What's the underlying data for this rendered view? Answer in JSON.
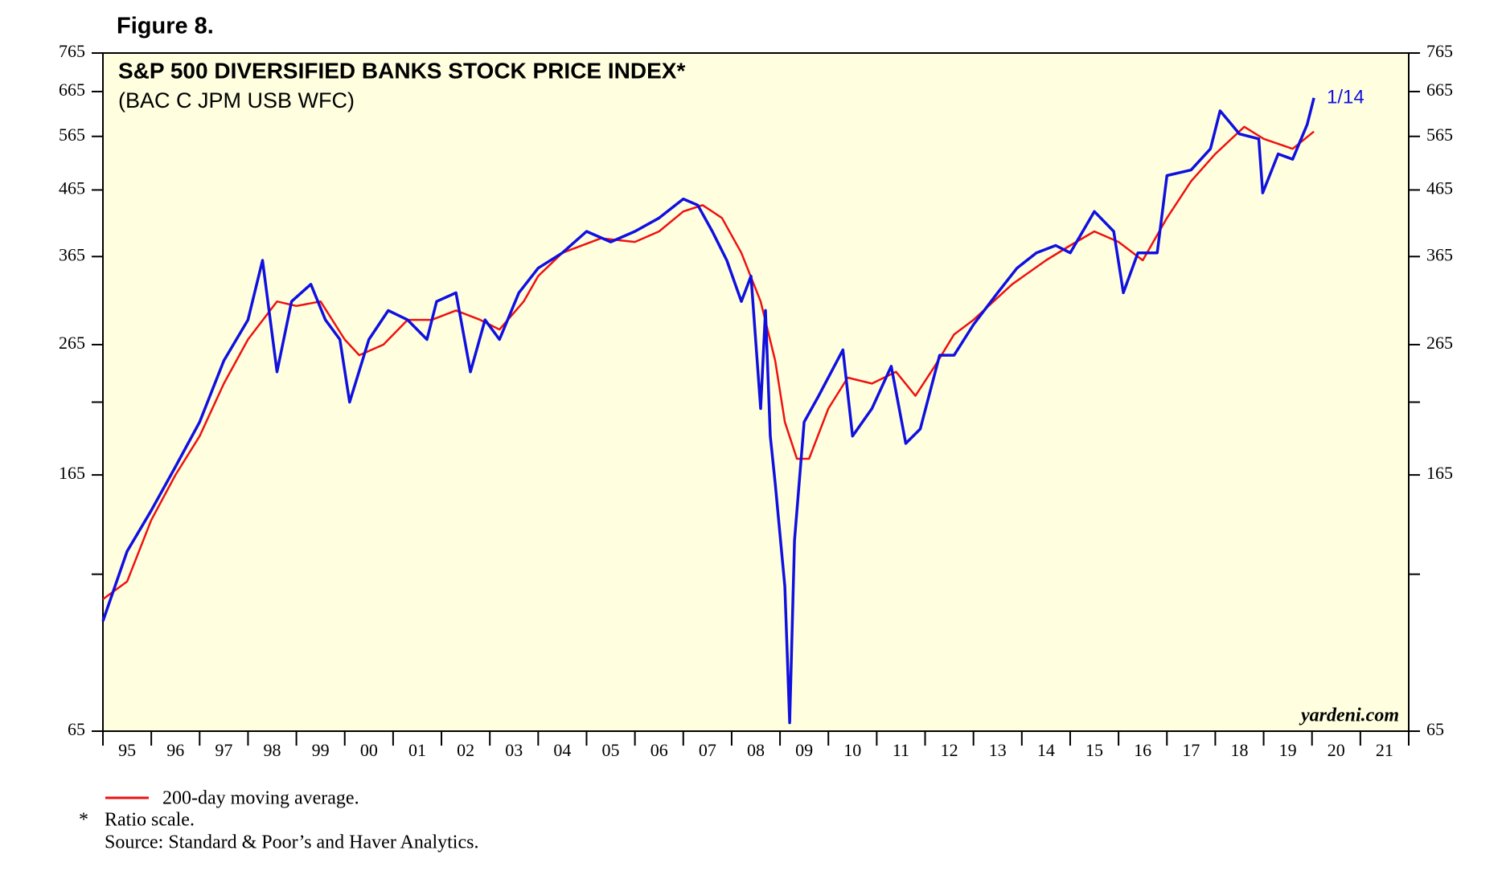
{
  "chart_data": {
    "type": "line",
    "figure_label": "Figure 8.",
    "title": "S&P 500 DIVERSIFIED BANKS STOCK PRICE INDEX*",
    "subtitle": "(BAC C JPM USB WFC)",
    "annotation": "1/14",
    "watermark": "yardeni.com",
    "note_marker": "*",
    "note": "Ratio scale.",
    "source": "Source: Standard & Poor’s and Haver Analytics.",
    "log_scale": true,
    "background": "#ffffe0",
    "xlim": [
      1995,
      2022
    ],
    "xticks": [
      1995,
      1996,
      1997,
      1998,
      1999,
      2000,
      2001,
      2002,
      2003,
      2004,
      2005,
      2006,
      2007,
      2008,
      2009,
      2010,
      2011,
      2012,
      2013,
      2014,
      2015,
      2016,
      2017,
      2018,
      2019,
      2020,
      2021,
      2022
    ],
    "xtick_labels": [
      {
        "value": 1995.5,
        "label": "95"
      },
      {
        "value": 1996.5,
        "label": "96"
      },
      {
        "value": 1997.5,
        "label": "97"
      },
      {
        "value": 1998.5,
        "label": "98"
      },
      {
        "value": 1999.5,
        "label": "99"
      },
      {
        "value": 2000.5,
        "label": "00"
      },
      {
        "value": 2001.5,
        "label": "01"
      },
      {
        "value": 2002.5,
        "label": "02"
      },
      {
        "value": 2003.5,
        "label": "03"
      },
      {
        "value": 2004.5,
        "label": "04"
      },
      {
        "value": 2005.5,
        "label": "05"
      },
      {
        "value": 2006.5,
        "label": "06"
      },
      {
        "value": 2007.5,
        "label": "07"
      },
      {
        "value": 2008.5,
        "label": "08"
      },
      {
        "value": 2009.5,
        "label": "09"
      },
      {
        "value": 2010.5,
        "label": "10"
      },
      {
        "value": 2011.5,
        "label": "11"
      },
      {
        "value": 2012.5,
        "label": "12"
      },
      {
        "value": 2013.5,
        "label": "13"
      },
      {
        "value": 2014.5,
        "label": "14"
      },
      {
        "value": 2015.5,
        "label": "15"
      },
      {
        "value": 2016.5,
        "label": "16"
      },
      {
        "value": 2017.5,
        "label": "17"
      },
      {
        "value": 2018.5,
        "label": "18"
      },
      {
        "value": 2019.5,
        "label": "19"
      },
      {
        "value": 2020.5,
        "label": "20"
      },
      {
        "value": 2021.5,
        "label": "21"
      }
    ],
    "ylim": [
      65,
      765
    ],
    "yticks": [
      65,
      165,
      265,
      365,
      465,
      565,
      665,
      765
    ],
    "minor_yticks": [
      115,
      215
    ],
    "series": [
      {
        "color": "#1010e0",
        "x": [
          1995.0,
          1995.5,
          1996.0,
          1996.5,
          1997.0,
          1997.5,
          1998.0,
          1998.3,
          1998.6,
          1998.9,
          1999.3,
          1999.6,
          1999.9,
          2000.1,
          2000.5,
          2000.9,
          2001.3,
          2001.7,
          2001.9,
          2002.3,
          2002.6,
          2002.9,
          2003.2,
          2003.6,
          2004.0,
          2004.5,
          2005.0,
          2005.5,
          2006.0,
          2006.5,
          2007.0,
          2007.3,
          2007.6,
          2007.9,
          2008.2,
          2008.4,
          2008.6,
          2008.7,
          2008.8,
          2008.9,
          2009.1,
          2009.2,
          2009.3,
          2009.5,
          2009.8,
          2010.3,
          2010.5,
          2010.9,
          2011.3,
          2011.6,
          2011.9,
          2012.3,
          2012.6,
          2013.0,
          2013.5,
          2013.9,
          2014.3,
          2014.7,
          2015.0,
          2015.5,
          2015.9,
          2016.1,
          2016.4,
          2016.8,
          2017.0,
          2017.5,
          2017.9,
          2018.1,
          2018.5,
          2018.9,
          2018.98,
          2019.3,
          2019.6,
          2019.9,
          2020.04
        ],
        "values": [
          97,
          125,
          145,
          170,
          200,
          250,
          290,
          360,
          240,
          310,
          330,
          290,
          270,
          215,
          270,
          300,
          290,
          270,
          310,
          320,
          240,
          290,
          270,
          320,
          350,
          370,
          400,
          385,
          400,
          420,
          450,
          440,
          400,
          360,
          310,
          340,
          210,
          300,
          190,
          160,
          110,
          67,
          130,
          200,
          220,
          260,
          190,
          210,
          245,
          185,
          195,
          255,
          255,
          285,
          320,
          350,
          370,
          380,
          370,
          430,
          400,
          320,
          370,
          370,
          490,
          500,
          540,
          620,
          570,
          560,
          460,
          530,
          520,
          590,
          650
        ]
      },
      {
        "name": "200-day moving average.",
        "color": "#ee1111",
        "x": [
          1995.0,
          1995.5,
          1996.0,
          1996.5,
          1997.0,
          1997.5,
          1998.0,
          1998.6,
          1999.0,
          1999.5,
          2000.0,
          2000.3,
          2000.8,
          2001.3,
          2001.8,
          2002.3,
          2002.8,
          2003.2,
          2003.7,
          2004.0,
          2004.5,
          2005.3,
          2006.0,
          2006.5,
          2007.0,
          2007.4,
          2007.8,
          2008.2,
          2008.6,
          2008.9,
          2009.1,
          2009.35,
          2009.6,
          2010.0,
          2010.4,
          2010.9,
          2011.4,
          2011.8,
          2012.2,
          2012.6,
          2013.0,
          2013.8,
          2014.5,
          2015.0,
          2015.5,
          2016.0,
          2016.5,
          2017.0,
          2017.5,
          2018.0,
          2018.6,
          2019.0,
          2019.6,
          2020.04
        ],
        "values": [
          105,
          112,
          140,
          165,
          190,
          230,
          270,
          310,
          305,
          310,
          270,
          255,
          265,
          290,
          290,
          300,
          290,
          280,
          310,
          340,
          370,
          390,
          385,
          400,
          430,
          440,
          420,
          370,
          310,
          250,
          200,
          175,
          175,
          210,
          235,
          230,
          240,
          220,
          245,
          275,
          290,
          330,
          360,
          380,
          400,
          385,
          360,
          420,
          480,
          530,
          585,
          560,
          540,
          575
        ]
      }
    ]
  }
}
